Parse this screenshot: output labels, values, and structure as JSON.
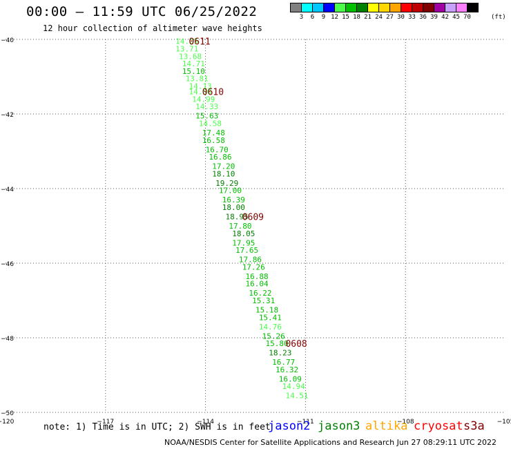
{
  "header": {
    "title": "00:00 – 11:59 UTC 06/25/2022",
    "subtitle": "12 hour collection of altimeter wave heights"
  },
  "scale": {
    "colors": [
      "#808080",
      "#00ffff",
      "#00c8ff",
      "#0000ff",
      "#4cff4c",
      "#00c000",
      "#008000",
      "#ffff00",
      "#ffd700",
      "#ffa500",
      "#ff0000",
      "#c00000",
      "#800000",
      "#a000a0",
      "#c8a0ff",
      "#ff80ff",
      "#000000"
    ],
    "labels": [
      "3",
      "6",
      "9",
      "12",
      "15",
      "18",
      "21",
      "24",
      "27",
      "30",
      "33",
      "36",
      "39",
      "42",
      "45",
      "70"
    ],
    "unit": "(ft)"
  },
  "note": "note: 1) Time is in UTC; 2) SWH is in feet",
  "satellites": [
    {
      "name": "jason2",
      "color": "#0000ff"
    },
    {
      "name": "jason3",
      "color": "#008000"
    },
    {
      "name": "altika",
      "color": "#ffa500"
    },
    {
      "name": "cryosat",
      "color": "#ff0000"
    },
    {
      "name": "s3a",
      "color": "#800000"
    }
  ],
  "credit": "NOAA/NESDIS Center for Satellite Applications and Research    Jun 27 08:29:11 UTC 2022",
  "chart_data": {
    "type": "scatter",
    "xlim": [
      -120,
      -105
    ],
    "ylim": [
      -50,
      -40
    ],
    "x_ticks": [
      -120,
      -117,
      -114,
      -111,
      -108,
      -105
    ],
    "y_ticks": [
      -40,
      -42,
      -44,
      -46,
      -48,
      -50
    ],
    "x_tick_labels": [
      "−120",
      "−117",
      "−114",
      "−111",
      "−108",
      "−105"
    ],
    "y_tick_labels": [
      "−40",
      "−42",
      "−44",
      "−46",
      "−48",
      "−50"
    ],
    "grid": true,
    "series": [
      {
        "points": [
          {
            "lon": -114.9,
            "lat": -40.05,
            "swh": "14.05",
            "color": "#4cff4c"
          },
          {
            "lon": -114.9,
            "lat": -40.25,
            "swh": "13.71",
            "color": "#4cff4c"
          },
          {
            "lon": -114.8,
            "lat": -40.45,
            "swh": "13.68",
            "color": "#4cff4c"
          },
          {
            "lon": -114.7,
            "lat": -40.65,
            "swh": "14.71",
            "color": "#4cff4c"
          },
          {
            "lon": -114.7,
            "lat": -40.85,
            "swh": "15.10",
            "color": "#00c000"
          },
          {
            "lon": -114.6,
            "lat": -41.05,
            "swh": "13.81",
            "color": "#4cff4c"
          },
          {
            "lon": -114.5,
            "lat": -41.25,
            "swh": "14.13",
            "color": "#4cff4c"
          },
          {
            "lon": -114.5,
            "lat": -41.4,
            "swh": "14.50",
            "color": "#4cff4c"
          },
          {
            "lon": -114.4,
            "lat": -41.6,
            "swh": "14.99",
            "color": "#4cff4c"
          },
          {
            "lon": -114.3,
            "lat": -41.8,
            "swh": "14.33",
            "color": "#4cff4c"
          },
          {
            "lon": -114.3,
            "lat": -42.05,
            "swh": "15.63",
            "color": "#00c000"
          },
          {
            "lon": -114.2,
            "lat": -42.25,
            "swh": "14.58",
            "color": "#4cff4c"
          },
          {
            "lon": -114.1,
            "lat": -42.5,
            "swh": "17.48",
            "color": "#00c000"
          },
          {
            "lon": -114.1,
            "lat": -42.7,
            "swh": "16.58",
            "color": "#00c000"
          },
          {
            "lon": -114.0,
            "lat": -42.95,
            "swh": "16.70",
            "color": "#00c000"
          },
          {
            "lon": -113.9,
            "lat": -43.15,
            "swh": "16.86",
            "color": "#00c000"
          },
          {
            "lon": -113.8,
            "lat": -43.4,
            "swh": "17.20",
            "color": "#00c000"
          },
          {
            "lon": -113.8,
            "lat": -43.6,
            "swh": "18.10",
            "color": "#008000"
          },
          {
            "lon": -113.7,
            "lat": -43.85,
            "swh": "19.29",
            "color": "#008000"
          },
          {
            "lon": -113.6,
            "lat": -44.05,
            "swh": "17.00",
            "color": "#00c000"
          },
          {
            "lon": -113.5,
            "lat": -44.3,
            "swh": "16.39",
            "color": "#00c000"
          },
          {
            "lon": -113.5,
            "lat": -44.5,
            "swh": "18.00",
            "color": "#008000"
          },
          {
            "lon": -113.4,
            "lat": -44.75,
            "swh": "18.95",
            "color": "#008000"
          },
          {
            "lon": -113.3,
            "lat": -45.0,
            "swh": "17.80",
            "color": "#00c000"
          },
          {
            "lon": -113.2,
            "lat": -45.2,
            "swh": "18.05",
            "color": "#008000"
          },
          {
            "lon": -113.2,
            "lat": -45.45,
            "swh": "17.95",
            "color": "#00c000"
          },
          {
            "lon": -113.1,
            "lat": -45.65,
            "swh": "17.65",
            "color": "#00c000"
          },
          {
            "lon": -113.0,
            "lat": -45.9,
            "swh": "17.86",
            "color": "#00c000"
          },
          {
            "lon": -112.9,
            "lat": -46.1,
            "swh": "17.26",
            "color": "#00c000"
          },
          {
            "lon": -112.8,
            "lat": -46.35,
            "swh": "16.88",
            "color": "#00c000"
          },
          {
            "lon": -112.8,
            "lat": -46.55,
            "swh": "16.04",
            "color": "#00c000"
          },
          {
            "lon": -112.7,
            "lat": -46.8,
            "swh": "16.22",
            "color": "#00c000"
          },
          {
            "lon": -112.6,
            "lat": -47.0,
            "swh": "15.31",
            "color": "#00c000"
          },
          {
            "lon": -112.5,
            "lat": -47.25,
            "swh": "15.18",
            "color": "#00c000"
          },
          {
            "lon": -112.4,
            "lat": -47.45,
            "swh": "15.41",
            "color": "#00c000"
          },
          {
            "lon": -112.4,
            "lat": -47.7,
            "swh": "14.76",
            "color": "#4cff4c"
          },
          {
            "lon": -112.3,
            "lat": -47.95,
            "swh": "15.26",
            "color": "#00c000"
          },
          {
            "lon": -112.2,
            "lat": -48.15,
            "swh": "15.80",
            "color": "#00c000"
          },
          {
            "lon": -112.1,
            "lat": -48.4,
            "swh": "18.23",
            "color": "#008000"
          },
          {
            "lon": -112.0,
            "lat": -48.65,
            "swh": "16.77",
            "color": "#00c000"
          },
          {
            "lon": -111.9,
            "lat": -48.85,
            "swh": "16.32",
            "color": "#00c000"
          },
          {
            "lon": -111.8,
            "lat": -49.1,
            "swh": "16.09",
            "color": "#00c000"
          },
          {
            "lon": -111.7,
            "lat": -49.3,
            "swh": "14.94",
            "color": "#4cff4c"
          },
          {
            "lon": -111.6,
            "lat": -49.55,
            "swh": "14.51",
            "color": "#4cff4c"
          }
        ]
      }
    ],
    "time_labels": [
      {
        "text": "0611",
        "lon": -114.5,
        "lat": -40.05,
        "color": "#800000"
      },
      {
        "text": "0610",
        "lon": -114.1,
        "lat": -41.4,
        "color": "#800000"
      },
      {
        "text": "0609",
        "lon": -112.9,
        "lat": -44.75,
        "color": "#800000"
      },
      {
        "text": "0608",
        "lon": -111.6,
        "lat": -48.15,
        "color": "#800000"
      }
    ]
  }
}
